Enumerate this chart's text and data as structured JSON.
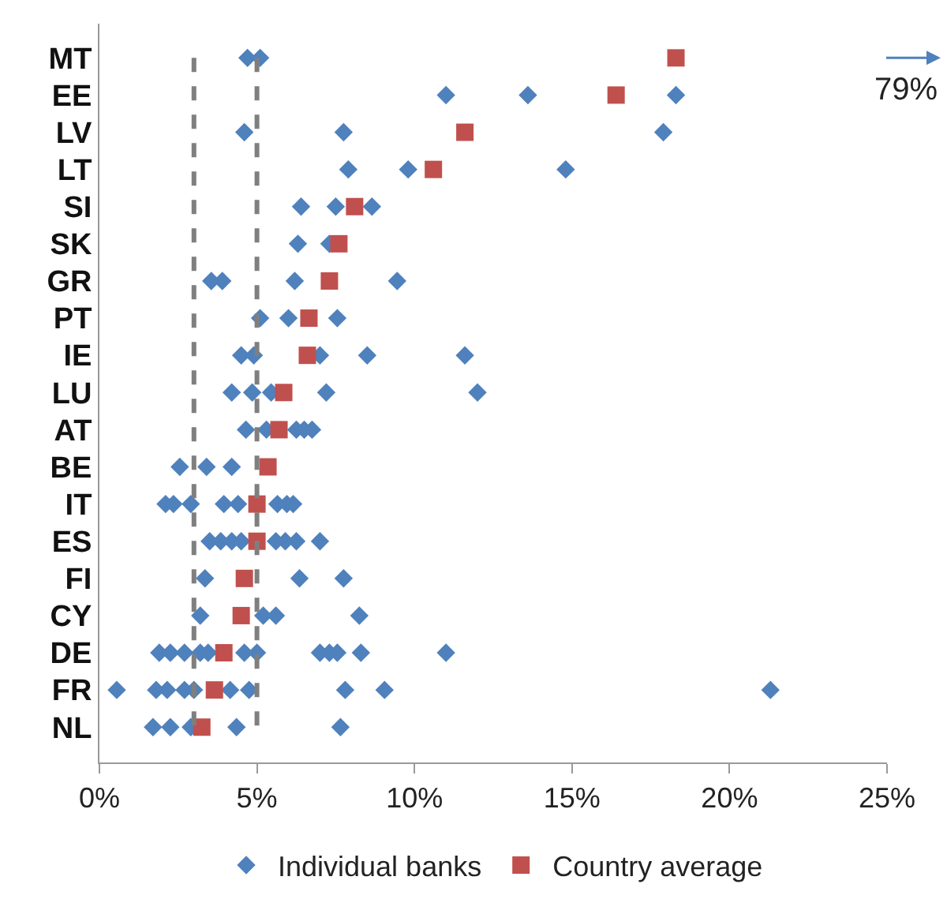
{
  "chart_data": {
    "type": "scatter",
    "orientation": "horizontal",
    "categories": [
      "MT",
      "EE",
      "LV",
      "LT",
      "SI",
      "SK",
      "GR",
      "PT",
      "IE",
      "LU",
      "AT",
      "BE",
      "IT",
      "ES",
      "FI",
      "CY",
      "DE",
      "FR",
      "NL"
    ],
    "series": [
      {
        "name": "Individual banks",
        "color": "#4f81bd",
        "marker": "diamond",
        "values": [
          4.7,
          11.0,
          4.6,
          7.9,
          6.4,
          6.3,
          3.55,
          5.1,
          4.5,
          4.2,
          4.65,
          2.55,
          2.1,
          3.5,
          3.35,
          3.2,
          1.9,
          0.55,
          1.7
        ]
      },
      {
        "color": "#4f81bd",
        "marker": "diamond",
        "values": [
          5.1,
          13.6,
          7.75,
          9.8,
          7.5,
          7.3,
          3.9,
          6.0,
          4.9,
          4.85,
          5.3,
          3.4,
          2.35,
          3.85,
          6.35,
          5.2,
          2.25,
          1.8,
          2.25
        ]
      },
      {
        "color": "#4f81bd",
        "marker": "diamond",
        "values": [
          null,
          18.3,
          17.9,
          14.8,
          8.65,
          null,
          6.2,
          7.55,
          7.0,
          5.45,
          6.25,
          4.2,
          2.9,
          4.2,
          7.75,
          5.6,
          2.7,
          2.15,
          2.9
        ]
      },
      {
        "color": "#4f81bd",
        "marker": "diamond",
        "values": [
          null,
          null,
          null,
          null,
          null,
          null,
          9.45,
          null,
          8.5,
          7.2,
          6.5,
          null,
          3.95,
          4.5,
          null,
          8.25,
          3.2,
          2.7,
          4.35
        ]
      },
      {
        "color": "#4f81bd",
        "marker": "diamond",
        "values": [
          null,
          null,
          null,
          null,
          null,
          null,
          null,
          null,
          11.6,
          12.0,
          6.75,
          null,
          4.4,
          5.6,
          null,
          null,
          3.45,
          3.0,
          7.65
        ]
      },
      {
        "color": "#4f81bd",
        "marker": "diamond",
        "values": [
          null,
          null,
          null,
          null,
          null,
          null,
          null,
          null,
          null,
          null,
          null,
          null,
          5.65,
          5.9,
          null,
          null,
          4.6,
          4.15,
          null
        ]
      },
      {
        "color": "#4f81bd",
        "marker": "diamond",
        "values": [
          null,
          null,
          null,
          null,
          null,
          null,
          null,
          null,
          null,
          null,
          null,
          null,
          5.95,
          6.25,
          null,
          null,
          5.0,
          4.75,
          null
        ]
      },
      {
        "color": "#4f81bd",
        "marker": "diamond",
        "values": [
          null,
          null,
          null,
          null,
          null,
          null,
          null,
          null,
          null,
          null,
          null,
          null,
          6.15,
          7.0,
          null,
          null,
          7.0,
          7.8,
          null
        ]
      },
      {
        "color": "#4f81bd",
        "marker": "diamond",
        "values": [
          null,
          null,
          null,
          null,
          null,
          null,
          null,
          null,
          null,
          null,
          null,
          null,
          null,
          null,
          null,
          null,
          7.3,
          9.05,
          null
        ]
      },
      {
        "color": "#4f81bd",
        "marker": "diamond",
        "values": [
          null,
          null,
          null,
          null,
          null,
          null,
          null,
          null,
          null,
          null,
          null,
          null,
          null,
          null,
          null,
          null,
          7.55,
          21.3,
          null
        ]
      },
      {
        "color": "#4f81bd",
        "marker": "diamond",
        "values": [
          null,
          null,
          null,
          null,
          null,
          null,
          null,
          null,
          null,
          null,
          null,
          null,
          null,
          null,
          null,
          null,
          8.3,
          null,
          null
        ]
      },
      {
        "color": "#4f81bd",
        "marker": "diamond",
        "values": [
          null,
          null,
          null,
          null,
          null,
          null,
          null,
          null,
          null,
          null,
          null,
          null,
          null,
          null,
          null,
          null,
          11.0,
          null,
          null
        ]
      },
      {
        "name": "Country average",
        "color": "#c0504d",
        "marker": "square",
        "values": [
          18.3,
          16.4,
          11.6,
          10.6,
          8.1,
          7.6,
          7.3,
          6.65,
          6.6,
          5.85,
          5.7,
          5.35,
          5.0,
          5.0,
          4.6,
          4.5,
          3.95,
          3.65,
          3.25
        ]
      }
    ],
    "xlim": [
      0,
      25
    ],
    "xticks": [
      {
        "value": 0,
        "label": "0%"
      },
      {
        "value": 5,
        "label": "5%"
      },
      {
        "value": 10,
        "label": "10%"
      },
      {
        "value": 15,
        "label": "15%"
      },
      {
        "value": 20,
        "label": "20%"
      },
      {
        "value": 25,
        "label": "25%"
      }
    ],
    "ref_lines": [
      {
        "axis": "x",
        "value": 3,
        "color": "#7f7f7f",
        "line_style": "dashed"
      },
      {
        "axis": "x",
        "value": 5,
        "color": "#7f7f7f",
        "line_style": "dashed"
      }
    ],
    "annotations": [
      "79%"
    ],
    "grid": false,
    "legend": "bottom"
  }
}
